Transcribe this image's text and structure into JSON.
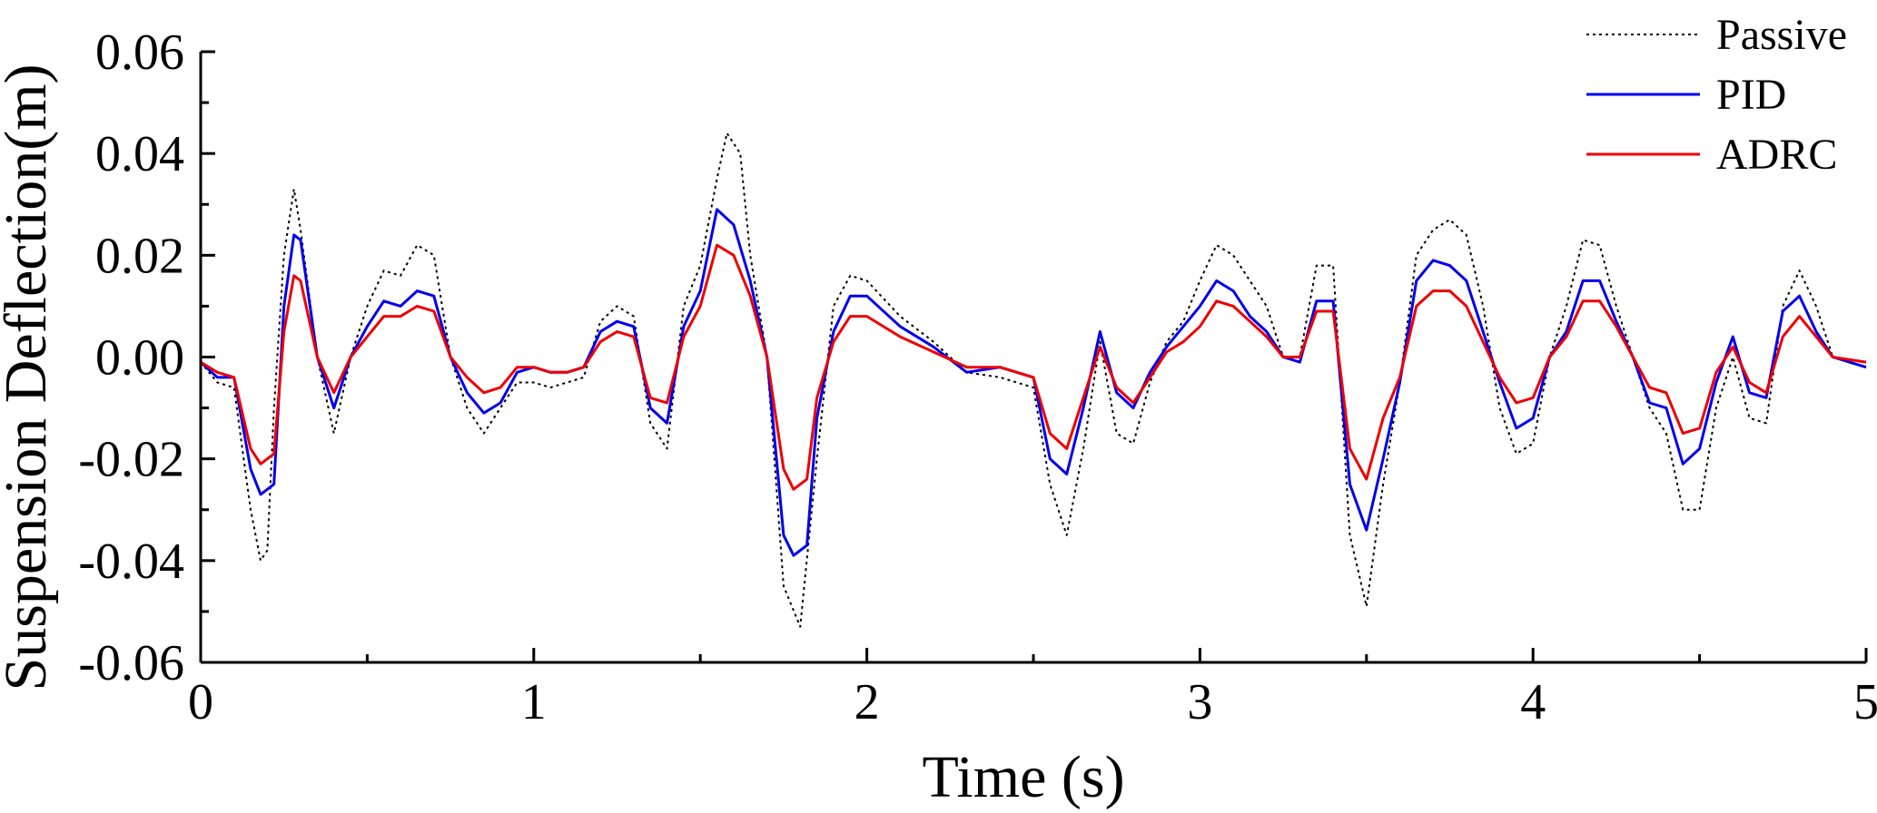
{
  "chart_data": {
    "type": "line",
    "xlabel": "Time (s)",
    "ylabel": "Suspension Deflection(m)",
    "xlim": [
      0,
      5
    ],
    "ylim": [
      -0.06,
      0.06
    ],
    "xticks": [
      "0",
      "1",
      "2",
      "3",
      "4",
      "5"
    ],
    "yticks": [
      "-0.06",
      "-0.04",
      "-0.02",
      "0.00",
      "0.02",
      "0.04",
      "0.06"
    ],
    "grid": false,
    "legend_position": "top-right",
    "series": [
      {
        "name": "Passive",
        "color": "#000000",
        "style": "dotted",
        "points": [
          [
            0,
            -0.001
          ],
          [
            0.05,
            -0.005
          ],
          [
            0.1,
            -0.006
          ],
          [
            0.15,
            -0.03
          ],
          [
            0.18,
            -0.04
          ],
          [
            0.2,
            -0.038
          ],
          [
            0.22,
            -0.01
          ],
          [
            0.25,
            0.02
          ],
          [
            0.28,
            0.033
          ],
          [
            0.3,
            0.025
          ],
          [
            0.35,
            0.0
          ],
          [
            0.4,
            -0.015
          ],
          [
            0.45,
            0.0
          ],
          [
            0.5,
            0.01
          ],
          [
            0.55,
            0.017
          ],
          [
            0.6,
            0.016
          ],
          [
            0.65,
            0.022
          ],
          [
            0.7,
            0.02
          ],
          [
            0.75,
            0.0
          ],
          [
            0.8,
            -0.01
          ],
          [
            0.85,
            -0.015
          ],
          [
            0.9,
            -0.01
          ],
          [
            0.95,
            -0.005
          ],
          [
            1.0,
            -0.005
          ],
          [
            1.05,
            -0.006
          ],
          [
            1.1,
            -0.005
          ],
          [
            1.15,
            -0.004
          ],
          [
            1.2,
            0.007
          ],
          [
            1.25,
            0.01
          ],
          [
            1.3,
            0.008
          ],
          [
            1.35,
            -0.013
          ],
          [
            1.4,
            -0.018
          ],
          [
            1.45,
            0.01
          ],
          [
            1.5,
            0.018
          ],
          [
            1.55,
            0.035
          ],
          [
            1.58,
            0.044
          ],
          [
            1.62,
            0.04
          ],
          [
            1.65,
            0.02
          ],
          [
            1.7,
            0.0
          ],
          [
            1.75,
            -0.045
          ],
          [
            1.8,
            -0.053
          ],
          [
            1.85,
            -0.02
          ],
          [
            1.9,
            0.01
          ],
          [
            1.95,
            0.016
          ],
          [
            2.0,
            0.015
          ],
          [
            2.1,
            0.008
          ],
          [
            2.2,
            0.003
          ],
          [
            2.3,
            -0.003
          ],
          [
            2.4,
            -0.004
          ],
          [
            2.5,
            -0.006
          ],
          [
            2.55,
            -0.025
          ],
          [
            2.6,
            -0.035
          ],
          [
            2.65,
            -0.018
          ],
          [
            2.7,
            0.003
          ],
          [
            2.75,
            -0.015
          ],
          [
            2.8,
            -0.017
          ],
          [
            2.85,
            -0.005
          ],
          [
            2.9,
            0.003
          ],
          [
            2.95,
            0.007
          ],
          [
            3.0,
            0.015
          ],
          [
            3.05,
            0.022
          ],
          [
            3.1,
            0.02
          ],
          [
            3.15,
            0.015
          ],
          [
            3.2,
            0.01
          ],
          [
            3.25,
            0.0
          ],
          [
            3.3,
            0.0
          ],
          [
            3.35,
            0.018
          ],
          [
            3.4,
            0.018
          ],
          [
            3.45,
            -0.035
          ],
          [
            3.5,
            -0.049
          ],
          [
            3.55,
            -0.025
          ],
          [
            3.6,
            -0.005
          ],
          [
            3.65,
            0.02
          ],
          [
            3.7,
            0.025
          ],
          [
            3.75,
            0.027
          ],
          [
            3.8,
            0.024
          ],
          [
            3.85,
            0.01
          ],
          [
            3.9,
            -0.01
          ],
          [
            3.95,
            -0.019
          ],
          [
            4.0,
            -0.017
          ],
          [
            4.05,
            0.0
          ],
          [
            4.1,
            0.01
          ],
          [
            4.15,
            0.023
          ],
          [
            4.2,
            0.022
          ],
          [
            4.25,
            0.01
          ],
          [
            4.3,
            0.0
          ],
          [
            4.35,
            -0.01
          ],
          [
            4.4,
            -0.015
          ],
          [
            4.45,
            -0.03
          ],
          [
            4.5,
            -0.03
          ],
          [
            4.55,
            -0.01
          ],
          [
            4.6,
            0.0
          ],
          [
            4.65,
            -0.012
          ],
          [
            4.7,
            -0.013
          ],
          [
            4.75,
            0.01
          ],
          [
            4.8,
            0.017
          ],
          [
            4.85,
            0.01
          ],
          [
            4.9,
            0.0
          ],
          [
            5.0,
            -0.002
          ]
        ]
      },
      {
        "name": "PID",
        "color": "#0000ee",
        "style": "solid",
        "points": [
          [
            0,
            -0.001
          ],
          [
            0.05,
            -0.004
          ],
          [
            0.1,
            -0.004
          ],
          [
            0.15,
            -0.022
          ],
          [
            0.18,
            -0.027
          ],
          [
            0.22,
            -0.025
          ],
          [
            0.25,
            0.01
          ],
          [
            0.28,
            0.024
          ],
          [
            0.3,
            0.023
          ],
          [
            0.35,
            0.0
          ],
          [
            0.4,
            -0.01
          ],
          [
            0.45,
            0.0
          ],
          [
            0.5,
            0.006
          ],
          [
            0.55,
            0.011
          ],
          [
            0.6,
            0.01
          ],
          [
            0.65,
            0.013
          ],
          [
            0.7,
            0.012
          ],
          [
            0.75,
            0.0
          ],
          [
            0.8,
            -0.007
          ],
          [
            0.85,
            -0.011
          ],
          [
            0.9,
            -0.009
          ],
          [
            0.95,
            -0.003
          ],
          [
            1.0,
            -0.002
          ],
          [
            1.05,
            -0.003
          ],
          [
            1.1,
            -0.003
          ],
          [
            1.15,
            -0.002
          ],
          [
            1.2,
            0.005
          ],
          [
            1.25,
            0.007
          ],
          [
            1.3,
            0.006
          ],
          [
            1.35,
            -0.01
          ],
          [
            1.4,
            -0.013
          ],
          [
            1.45,
            0.006
          ],
          [
            1.5,
            0.013
          ],
          [
            1.55,
            0.029
          ],
          [
            1.6,
            0.026
          ],
          [
            1.65,
            0.015
          ],
          [
            1.7,
            0.0
          ],
          [
            1.75,
            -0.035
          ],
          [
            1.78,
            -0.039
          ],
          [
            1.82,
            -0.037
          ],
          [
            1.85,
            -0.012
          ],
          [
            1.9,
            0.005
          ],
          [
            1.95,
            0.012
          ],
          [
            2.0,
            0.012
          ],
          [
            2.1,
            0.006
          ],
          [
            2.2,
            0.002
          ],
          [
            2.3,
            -0.003
          ],
          [
            2.4,
            -0.002
          ],
          [
            2.5,
            -0.004
          ],
          [
            2.55,
            -0.02
          ],
          [
            2.6,
            -0.023
          ],
          [
            2.65,
            -0.01
          ],
          [
            2.7,
            0.005
          ],
          [
            2.75,
            -0.007
          ],
          [
            2.8,
            -0.01
          ],
          [
            2.85,
            -0.003
          ],
          [
            2.9,
            0.002
          ],
          [
            2.95,
            0.006
          ],
          [
            3.0,
            0.01
          ],
          [
            3.05,
            0.015
          ],
          [
            3.1,
            0.013
          ],
          [
            3.15,
            0.008
          ],
          [
            3.2,
            0.005
          ],
          [
            3.25,
            0.0
          ],
          [
            3.3,
            -0.001
          ],
          [
            3.35,
            0.011
          ],
          [
            3.4,
            0.011
          ],
          [
            3.45,
            -0.025
          ],
          [
            3.5,
            -0.034
          ],
          [
            3.55,
            -0.02
          ],
          [
            3.6,
            -0.005
          ],
          [
            3.65,
            0.015
          ],
          [
            3.7,
            0.019
          ],
          [
            3.75,
            0.018
          ],
          [
            3.8,
            0.015
          ],
          [
            3.85,
            0.005
          ],
          [
            3.9,
            -0.005
          ],
          [
            3.95,
            -0.014
          ],
          [
            4.0,
            -0.012
          ],
          [
            4.05,
            0.0
          ],
          [
            4.1,
            0.005
          ],
          [
            4.15,
            0.015
          ],
          [
            4.2,
            0.015
          ],
          [
            4.25,
            0.007
          ],
          [
            4.3,
            0.0
          ],
          [
            4.35,
            -0.009
          ],
          [
            4.4,
            -0.01
          ],
          [
            4.45,
            -0.021
          ],
          [
            4.5,
            -0.018
          ],
          [
            4.55,
            -0.005
          ],
          [
            4.6,
            0.004
          ],
          [
            4.65,
            -0.007
          ],
          [
            4.7,
            -0.008
          ],
          [
            4.75,
            0.009
          ],
          [
            4.8,
            0.012
          ],
          [
            4.85,
            0.005
          ],
          [
            4.9,
            0.0
          ],
          [
            5.0,
            -0.002
          ]
        ]
      },
      {
        "name": "ADRC",
        "color": "#ee0000",
        "style": "solid",
        "points": [
          [
            0,
            -0.001
          ],
          [
            0.05,
            -0.003
          ],
          [
            0.1,
            -0.004
          ],
          [
            0.15,
            -0.018
          ],
          [
            0.18,
            -0.021
          ],
          [
            0.22,
            -0.019
          ],
          [
            0.25,
            0.005
          ],
          [
            0.28,
            0.016
          ],
          [
            0.3,
            0.015
          ],
          [
            0.35,
            0.0
          ],
          [
            0.4,
            -0.007
          ],
          [
            0.45,
            0.0
          ],
          [
            0.5,
            0.004
          ],
          [
            0.55,
            0.008
          ],
          [
            0.6,
            0.008
          ],
          [
            0.65,
            0.01
          ],
          [
            0.7,
            0.009
          ],
          [
            0.75,
            0.0
          ],
          [
            0.8,
            -0.004
          ],
          [
            0.85,
            -0.007
          ],
          [
            0.9,
            -0.006
          ],
          [
            0.95,
            -0.002
          ],
          [
            1.0,
            -0.002
          ],
          [
            1.05,
            -0.003
          ],
          [
            1.1,
            -0.003
          ],
          [
            1.15,
            -0.002
          ],
          [
            1.2,
            0.003
          ],
          [
            1.25,
            0.005
          ],
          [
            1.3,
            0.004
          ],
          [
            1.35,
            -0.008
          ],
          [
            1.4,
            -0.009
          ],
          [
            1.45,
            0.004
          ],
          [
            1.5,
            0.01
          ],
          [
            1.55,
            0.022
          ],
          [
            1.6,
            0.02
          ],
          [
            1.65,
            0.012
          ],
          [
            1.7,
            0.0
          ],
          [
            1.75,
            -0.022
          ],
          [
            1.78,
            -0.026
          ],
          [
            1.82,
            -0.024
          ],
          [
            1.85,
            -0.008
          ],
          [
            1.9,
            0.003
          ],
          [
            1.95,
            0.008
          ],
          [
            2.0,
            0.008
          ],
          [
            2.1,
            0.004
          ],
          [
            2.2,
            0.001
          ],
          [
            2.3,
            -0.002
          ],
          [
            2.4,
            -0.002
          ],
          [
            2.5,
            -0.004
          ],
          [
            2.55,
            -0.015
          ],
          [
            2.6,
            -0.018
          ],
          [
            2.65,
            -0.008
          ],
          [
            2.7,
            0.002
          ],
          [
            2.75,
            -0.006
          ],
          [
            2.8,
            -0.009
          ],
          [
            2.85,
            -0.004
          ],
          [
            2.9,
            0.001
          ],
          [
            2.95,
            0.003
          ],
          [
            3.0,
            0.006
          ],
          [
            3.05,
            0.011
          ],
          [
            3.1,
            0.01
          ],
          [
            3.15,
            0.007
          ],
          [
            3.2,
            0.004
          ],
          [
            3.25,
            0.0
          ],
          [
            3.3,
            0.0
          ],
          [
            3.35,
            0.009
          ],
          [
            3.4,
            0.009
          ],
          [
            3.45,
            -0.018
          ],
          [
            3.5,
            -0.024
          ],
          [
            3.55,
            -0.012
          ],
          [
            3.6,
            -0.004
          ],
          [
            3.65,
            0.01
          ],
          [
            3.7,
            0.013
          ],
          [
            3.75,
            0.013
          ],
          [
            3.8,
            0.01
          ],
          [
            3.85,
            0.003
          ],
          [
            3.9,
            -0.004
          ],
          [
            3.95,
            -0.009
          ],
          [
            4.0,
            -0.008
          ],
          [
            4.05,
            0.0
          ],
          [
            4.1,
            0.004
          ],
          [
            4.15,
            0.011
          ],
          [
            4.2,
            0.011
          ],
          [
            4.25,
            0.006
          ],
          [
            4.3,
            0.0
          ],
          [
            4.35,
            -0.006
          ],
          [
            4.4,
            -0.007
          ],
          [
            4.45,
            -0.015
          ],
          [
            4.5,
            -0.014
          ],
          [
            4.55,
            -0.003
          ],
          [
            4.6,
            0.002
          ],
          [
            4.65,
            -0.005
          ],
          [
            4.7,
            -0.007
          ],
          [
            4.75,
            0.004
          ],
          [
            4.8,
            0.008
          ],
          [
            4.85,
            0.004
          ],
          [
            4.9,
            0.0
          ],
          [
            5.0,
            -0.001
          ]
        ]
      }
    ]
  }
}
